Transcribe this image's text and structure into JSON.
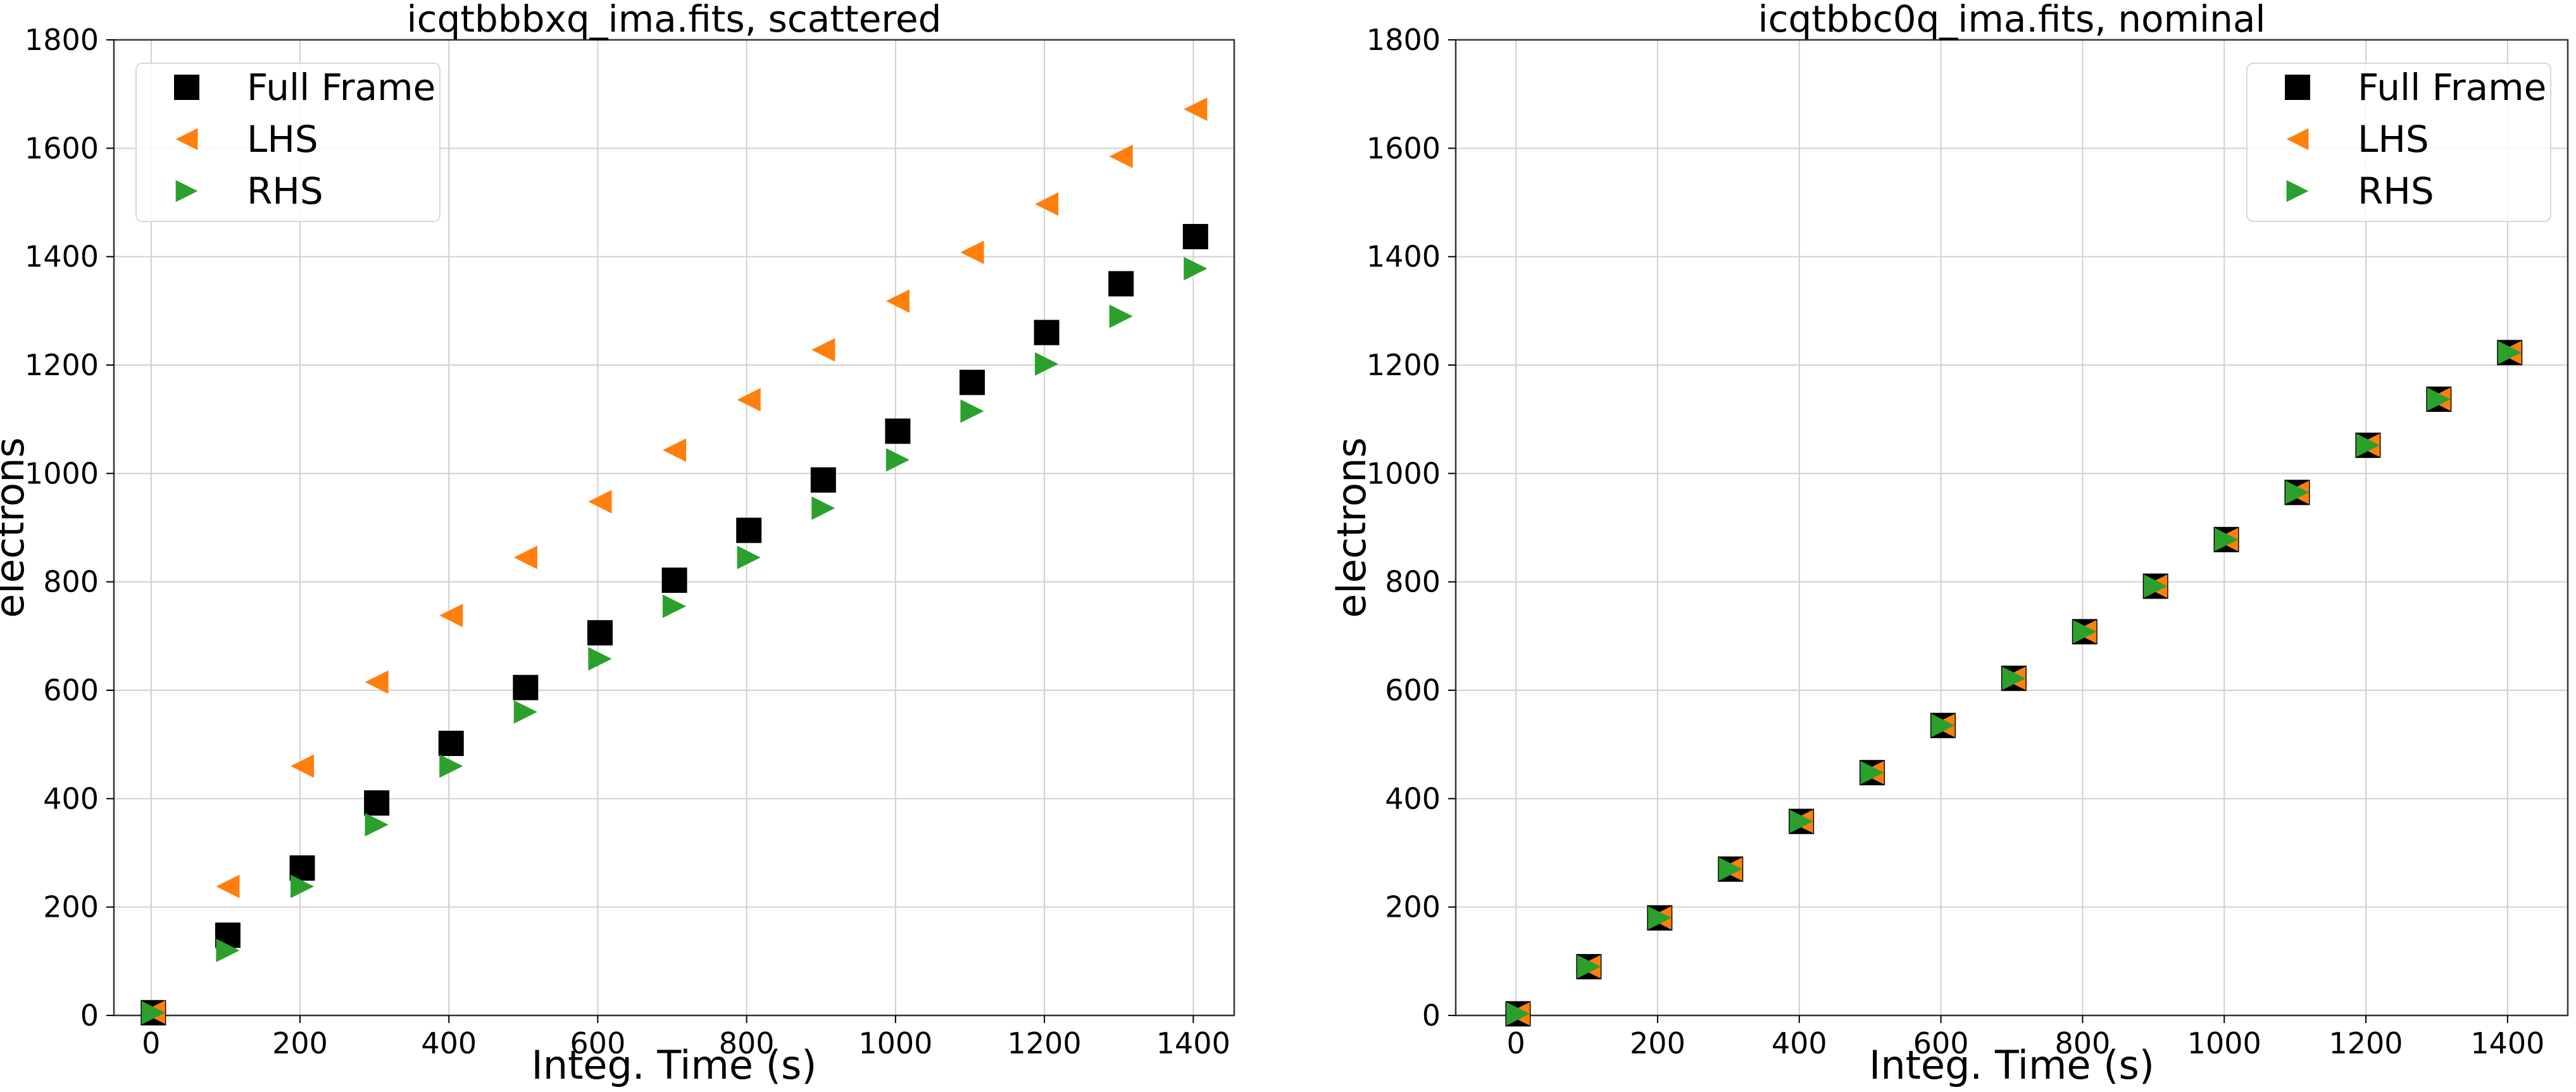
{
  "chart_data": [
    {
      "type": "scatter",
      "title": "icqtbbbxq_ima.fits, scattered",
      "xlabel": "Integ. Time (s)",
      "ylabel": "electrons",
      "xlim": [
        -50,
        1455
      ],
      "ylim": [
        0,
        1800
      ],
      "xticks": [
        0,
        200,
        400,
        600,
        800,
        1000,
        1200,
        1400
      ],
      "yticks": [
        0,
        200,
        400,
        600,
        800,
        1000,
        1200,
        1400,
        1600,
        1800
      ],
      "grid": true,
      "legend_position": "upper-left",
      "series": [
        {
          "name": "Full Frame",
          "marker": "square",
          "color": "#000000",
          "x": [
            3,
            103,
            203,
            303,
            403,
            503,
            603,
            703,
            803,
            903,
            1003,
            1103,
            1203,
            1303,
            1403
          ],
          "y": [
            5,
            148,
            272,
            392,
            502,
            605,
            706,
            803,
            895,
            988,
            1078,
            1168,
            1260,
            1350,
            1437
          ]
        },
        {
          "name": "LHS",
          "marker": "triangle-left",
          "color": "#ff7f0e",
          "x": [
            3,
            103,
            203,
            303,
            403,
            503,
            603,
            703,
            803,
            903,
            1003,
            1103,
            1203,
            1303,
            1403
          ],
          "y": [
            6,
            238,
            460,
            615,
            738,
            845,
            948,
            1043,
            1136,
            1228,
            1318,
            1408,
            1497,
            1585,
            1672
          ]
        },
        {
          "name": "RHS",
          "marker": "triangle-right",
          "color": "#2ca02c",
          "x": [
            3,
            103,
            203,
            303,
            403,
            503,
            603,
            703,
            803,
            903,
            1003,
            1103,
            1203,
            1303,
            1403
          ],
          "y": [
            5,
            120,
            238,
            352,
            460,
            560,
            658,
            755,
            845,
            936,
            1025,
            1115,
            1202,
            1290,
            1378
          ]
        }
      ]
    },
    {
      "type": "scatter",
      "title": "icqtbbc0q_ima.fits, nominal",
      "xlabel": "Integ. Time (s)",
      "ylabel": "electrons",
      "xlim": [
        -85,
        1485
      ],
      "ylim": [
        0,
        1800
      ],
      "xticks": [
        0,
        200,
        400,
        600,
        800,
        1000,
        1200,
        1400
      ],
      "yticks": [
        0,
        200,
        400,
        600,
        800,
        1000,
        1200,
        1400,
        1600,
        1800
      ],
      "grid": true,
      "legend_position": "upper-right",
      "series": [
        {
          "name": "Full Frame",
          "marker": "square",
          "color": "#000000",
          "x": [
            3,
            103,
            203,
            303,
            403,
            503,
            603,
            703,
            803,
            903,
            1003,
            1103,
            1203,
            1303,
            1403
          ],
          "y": [
            3,
            90,
            180,
            270,
            358,
            448,
            535,
            622,
            708,
            792,
            878,
            965,
            1052,
            1137,
            1223
          ]
        },
        {
          "name": "LHS",
          "marker": "triangle-left",
          "color": "#ff7f0e",
          "x": [
            3,
            103,
            203,
            303,
            403,
            503,
            603,
            703,
            803,
            903,
            1003,
            1103,
            1203,
            1303,
            1403
          ],
          "y": [
            3,
            90,
            180,
            270,
            358,
            448,
            535,
            622,
            708,
            792,
            878,
            965,
            1052,
            1137,
            1223
          ]
        },
        {
          "name": "RHS",
          "marker": "triangle-right",
          "color": "#2ca02c",
          "x": [
            3,
            103,
            203,
            303,
            403,
            503,
            603,
            703,
            803,
            903,
            1003,
            1103,
            1203,
            1303,
            1403
          ],
          "y": [
            3,
            90,
            180,
            270,
            358,
            448,
            535,
            622,
            708,
            792,
            878,
            965,
            1052,
            1137,
            1223
          ]
        }
      ]
    }
  ]
}
